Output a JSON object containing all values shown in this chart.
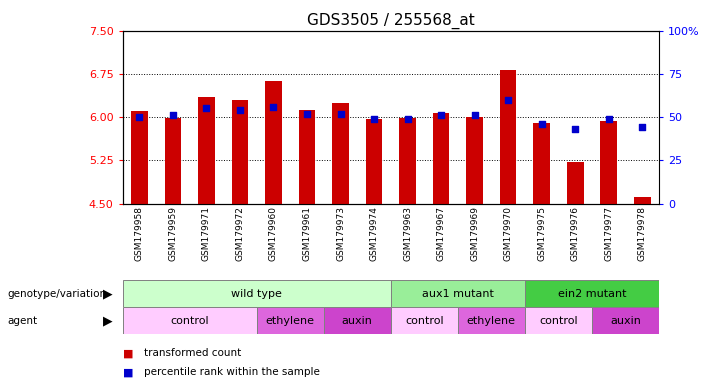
{
  "title": "GDS3505 / 255568_at",
  "samples": [
    "GSM179958",
    "GSM179959",
    "GSM179971",
    "GSM179972",
    "GSM179960",
    "GSM179961",
    "GSM179973",
    "GSM179974",
    "GSM179963",
    "GSM179967",
    "GSM179969",
    "GSM179970",
    "GSM179975",
    "GSM179976",
    "GSM179977",
    "GSM179978"
  ],
  "bar_values": [
    6.1,
    5.98,
    6.35,
    6.3,
    6.62,
    6.12,
    6.25,
    5.97,
    5.98,
    6.08,
    6.01,
    6.82,
    5.9,
    5.22,
    5.93,
    4.62
  ],
  "dot_values": [
    50,
    51,
    55,
    54,
    56,
    52,
    52,
    49,
    49,
    51,
    51,
    60,
    46,
    43,
    49,
    44
  ],
  "bar_bottom": 4.5,
  "ylim_left": [
    4.5,
    7.5
  ],
  "ylim_right": [
    0,
    100
  ],
  "yticks_left": [
    4.5,
    5.25,
    6.0,
    6.75,
    7.5
  ],
  "yticks_right": [
    0,
    25,
    50,
    75,
    100
  ],
  "hlines": [
    5.25,
    6.0,
    6.75
  ],
  "bar_color": "#cc0000",
  "dot_color": "#0000cc",
  "title_fontsize": 11,
  "genotype_groups": [
    {
      "label": "wild type",
      "start": 0,
      "end": 8,
      "color": "#ccffcc"
    },
    {
      "label": "aux1 mutant",
      "start": 8,
      "end": 12,
      "color": "#99ee99"
    },
    {
      "label": "ein2 mutant",
      "start": 12,
      "end": 16,
      "color": "#44cc44"
    }
  ],
  "agent_groups": [
    {
      "label": "control",
      "start": 0,
      "end": 4,
      "color": "#ffccff"
    },
    {
      "label": "ethylene",
      "start": 4,
      "end": 6,
      "color": "#dd66dd"
    },
    {
      "label": "auxin",
      "start": 6,
      "end": 8,
      "color": "#cc44cc"
    },
    {
      "label": "control",
      "start": 8,
      "end": 10,
      "color": "#ffccff"
    },
    {
      "label": "ethylene",
      "start": 10,
      "end": 12,
      "color": "#dd66dd"
    },
    {
      "label": "control",
      "start": 12,
      "end": 14,
      "color": "#ffccff"
    },
    {
      "label": "auxin",
      "start": 14,
      "end": 16,
      "color": "#cc44cc"
    }
  ],
  "legend_items": [
    {
      "label": "transformed count",
      "color": "#cc0000"
    },
    {
      "label": "percentile rank within the sample",
      "color": "#0000cc"
    }
  ]
}
